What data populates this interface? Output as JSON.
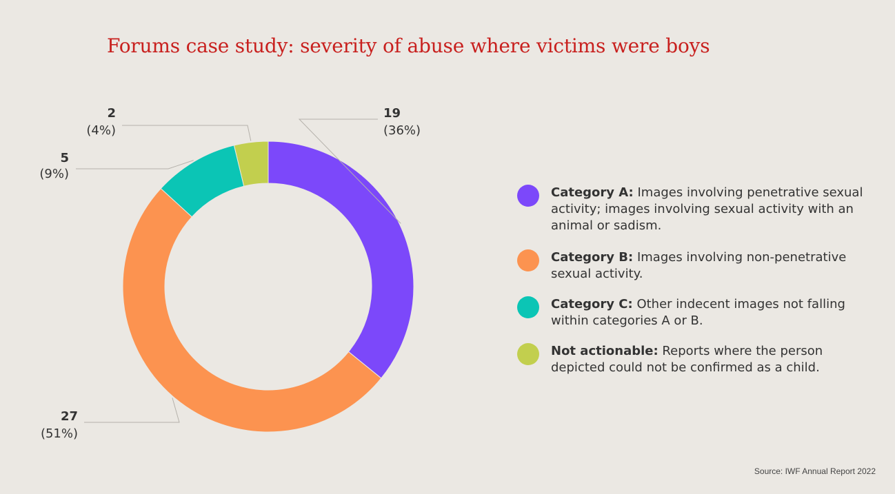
{
  "chart_data": {
    "type": "pie",
    "title": "Forums case study: severity of abuse where victims were boys",
    "slices": [
      {
        "category": "Category A:",
        "description": "Images involving penetrative sexual activity; images involving sexual activity with an animal or sadism.",
        "value": 19,
        "percent_label": "(36%)",
        "value_label": "19",
        "color": "#7c48fa"
      },
      {
        "category": "Category B:",
        "description": "Images involving non-penetrative sexual activity.",
        "value": 27,
        "percent_label": "(51%)",
        "value_label": "27",
        "color": "#fc9350"
      },
      {
        "category": "Category C:",
        "description": "Other indecent images not falling within categories A or B.",
        "value": 5,
        "percent_label": "(9%)",
        "value_label": "5",
        "color": "#0bc5b5"
      },
      {
        "category": "Not actionable:",
        "description": "Reports where the person depicted could not be confirmed as a child.",
        "value": 2,
        "percent_label": "(4%)",
        "value_label": "2",
        "color": "#c2cf4e"
      }
    ],
    "legend_position": "right",
    "donut": true
  },
  "source": "Source: IWF Annual Report 2022"
}
